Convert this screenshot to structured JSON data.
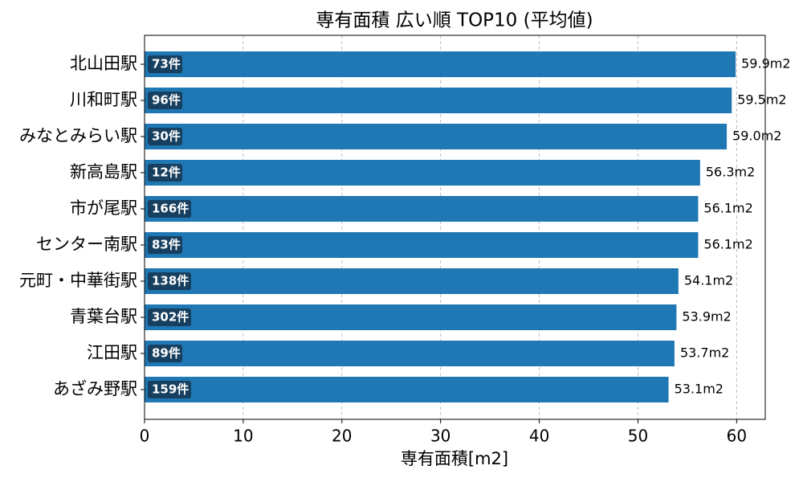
{
  "chart_data": {
    "type": "barh",
    "title": "専有面積 広い順 TOP10 (平均値)",
    "xlabel": "専有面積[m2]",
    "categories": [
      "北山田駅",
      "川和町駅",
      "みなとみらい駅",
      "新高島駅",
      "市が尾駅",
      "センター南駅",
      "元町・中華街駅",
      "青葉台駅",
      "江田駅",
      "あざみ野駅"
    ],
    "values": [
      59.9,
      59.5,
      59.0,
      56.3,
      56.1,
      56.1,
      54.1,
      53.9,
      53.7,
      53.1
    ],
    "value_labels": [
      "59.9m2",
      "59.5m2",
      "59.0m2",
      "56.3m2",
      "56.1m2",
      "56.1m2",
      "54.1m2",
      "53.9m2",
      "53.7m2",
      "53.1m2"
    ],
    "count_labels": [
      "73件",
      "96件",
      "30件",
      "12件",
      "166件",
      "83件",
      "138件",
      "302件",
      "89件",
      "159件"
    ],
    "color": "#1f77b4",
    "badge_color": "#173f5f",
    "xlim": [
      0,
      62.9
    ],
    "xticks": [
      0,
      10,
      20,
      30,
      40,
      50,
      60
    ],
    "grid": true
  }
}
